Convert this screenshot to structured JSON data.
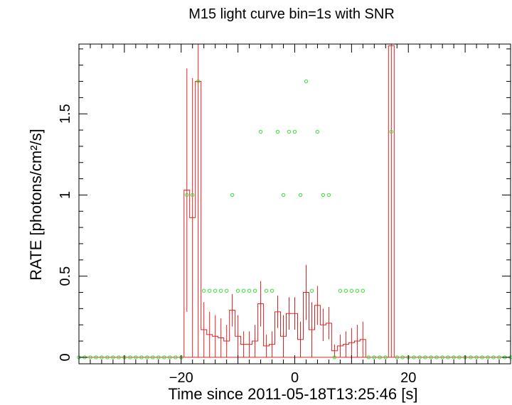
{
  "chart_data": {
    "type": "line",
    "title": "M15 light curve bin=1s with SNR",
    "xlabel": "Time since 2011-05-18T13:25:46 [s]",
    "ylabel": "RATE [photons/cm²/s]",
    "xlim": [
      -38,
      38
    ],
    "ylim": [
      -0.04,
      1.93
    ],
    "xticks": [
      -20,
      0,
      20
    ],
    "xtick_labels": [
      "−20",
      "0",
      "20"
    ],
    "yticks": [
      0,
      0.5,
      1,
      1.5
    ],
    "ytick_labels": [
      "0",
      "0.5",
      "1",
      "1.5"
    ],
    "grid": false,
    "colors": {
      "rate": "#e02020",
      "snr": "#33dd33",
      "axes": "#000000"
    },
    "series": [
      {
        "kind": "step-with-errorbars",
        "bin_width": 1,
        "points": [
          {
            "t": -19,
            "rate": 1.03,
            "err": 0.75
          },
          {
            "t": -18,
            "rate": 0.86,
            "err": 0.86
          },
          {
            "t": -17,
            "rate": 1.7,
            "err": 1.7
          },
          {
            "t": -16,
            "rate": 0.17,
            "err": 0.17
          },
          {
            "t": -15,
            "rate": 0.14,
            "err": 0.14
          },
          {
            "t": -14,
            "rate": 0.13,
            "err": 0.13
          },
          {
            "t": -13,
            "rate": 0.12,
            "err": 0.12
          },
          {
            "t": -12,
            "rate": 0.1,
            "err": 0.1
          },
          {
            "t": -11,
            "rate": 0.29,
            "err": 0.1
          },
          {
            "t": -10,
            "rate": 0.13,
            "err": 0.13
          },
          {
            "t": -9,
            "rate": 0.08,
            "err": 0.08
          },
          {
            "t": -8,
            "rate": 0.08,
            "err": 0.08
          },
          {
            "t": -7,
            "rate": 0.1,
            "err": 0.1
          },
          {
            "t": -6,
            "rate": 0.33,
            "err": 0.14
          },
          {
            "t": -5,
            "rate": 0.07,
            "err": 0.07
          },
          {
            "t": -4,
            "rate": 0.08,
            "err": 0.08
          },
          {
            "t": -3,
            "rate": 0.28,
            "err": 0.1
          },
          {
            "t": -2,
            "rate": 0.13,
            "err": 0.13
          },
          {
            "t": -1,
            "rate": 0.27,
            "err": 0.1
          },
          {
            "t": 0,
            "rate": 0.27,
            "err": 0.1
          },
          {
            "t": 1,
            "rate": 0.11,
            "err": 0.11
          },
          {
            "t": 2,
            "rate": 0.4,
            "err": 0.17
          },
          {
            "t": 3,
            "rate": 0.17,
            "err": 0.17
          },
          {
            "t": 4,
            "rate": 0.32,
            "err": 0.12
          },
          {
            "t": 5,
            "rate": 0.2,
            "err": 0.1
          },
          {
            "t": 6,
            "rate": 0.21,
            "err": 0.1
          },
          {
            "t": 7,
            "rate": 0.04,
            "err": 0.04
          },
          {
            "t": 8,
            "rate": 0.07,
            "err": 0.07
          },
          {
            "t": 9,
            "rate": 0.08,
            "err": 0.08
          },
          {
            "t": 10,
            "rate": 0.09,
            "err": 0.09
          },
          {
            "t": 11,
            "rate": 0.1,
            "err": 0.1
          },
          {
            "t": 12,
            "rate": 0.11,
            "err": 0.11
          },
          {
            "t": 17,
            "rate": 1.92,
            "err": 1.92
          }
        ]
      },
      {
        "kind": "scatter",
        "points": [
          {
            "t": -38,
            "snr": 0
          },
          {
            "t": -37,
            "snr": 0
          },
          {
            "t": -36,
            "snr": 0
          },
          {
            "t": -35,
            "snr": 0
          },
          {
            "t": -34,
            "snr": 0
          },
          {
            "t": -33,
            "snr": 0
          },
          {
            "t": -32,
            "snr": 0
          },
          {
            "t": -31,
            "snr": 0
          },
          {
            "t": -30,
            "snr": 0
          },
          {
            "t": -29,
            "snr": 0
          },
          {
            "t": -28,
            "snr": 0
          },
          {
            "t": -27,
            "snr": 0
          },
          {
            "t": -26,
            "snr": 0
          },
          {
            "t": -25,
            "snr": 0
          },
          {
            "t": -24,
            "snr": 0
          },
          {
            "t": -23,
            "snr": 0
          },
          {
            "t": -22,
            "snr": 0
          },
          {
            "t": -21,
            "snr": 0
          },
          {
            "t": -20,
            "snr": 0
          },
          {
            "t": -19,
            "snr": 1.0
          },
          {
            "t": -18,
            "snr": 1.0
          },
          {
            "t": -17,
            "snr": 1.7
          },
          {
            "t": -16,
            "snr": 0.41
          },
          {
            "t": -15,
            "snr": 0.41
          },
          {
            "t": -14,
            "snr": 0.41
          },
          {
            "t": -13,
            "snr": 0.41
          },
          {
            "t": -12,
            "snr": 0.41
          },
          {
            "t": -11,
            "snr": 1.0
          },
          {
            "t": -10,
            "snr": 0.41
          },
          {
            "t": -9,
            "snr": 0.41
          },
          {
            "t": -8,
            "snr": 0.41
          },
          {
            "t": -7,
            "snr": 0.41
          },
          {
            "t": -6,
            "snr": 1.39
          },
          {
            "t": -5,
            "snr": 0.41
          },
          {
            "t": -4,
            "snr": 0.41
          },
          {
            "t": -3,
            "snr": 1.39
          },
          {
            "t": -2,
            "snr": 1.0
          },
          {
            "t": -1,
            "snr": 1.39
          },
          {
            "t": 0,
            "snr": 1.39
          },
          {
            "t": 1,
            "snr": 1.0
          },
          {
            "t": 2,
            "snr": 1.7
          },
          {
            "t": 3,
            "snr": 0.41
          },
          {
            "t": 4,
            "snr": 1.39
          },
          {
            "t": 5,
            "snr": 1.0
          },
          {
            "t": 6,
            "snr": 1.0
          },
          {
            "t": 7,
            "snr": 0
          },
          {
            "t": 8,
            "snr": 0.41
          },
          {
            "t": 9,
            "snr": 0.41
          },
          {
            "t": 10,
            "snr": 0.41
          },
          {
            "t": 11,
            "snr": 0.41
          },
          {
            "t": 12,
            "snr": 0.41
          },
          {
            "t": 13,
            "snr": 0
          },
          {
            "t": 14,
            "snr": 0
          },
          {
            "t": 15,
            "snr": 0
          },
          {
            "t": 16,
            "snr": 0
          },
          {
            "t": 17,
            "snr": 1.39
          },
          {
            "t": 18,
            "snr": 0
          },
          {
            "t": 19,
            "snr": 0
          },
          {
            "t": 20,
            "snr": 0
          },
          {
            "t": 21,
            "snr": 0
          },
          {
            "t": 22,
            "snr": 0
          },
          {
            "t": 23,
            "snr": 0
          },
          {
            "t": 24,
            "snr": 0
          },
          {
            "t": 25,
            "snr": 0
          },
          {
            "t": 26,
            "snr": 0
          },
          {
            "t": 27,
            "snr": 0
          },
          {
            "t": 28,
            "snr": 0
          },
          {
            "t": 29,
            "snr": 0
          },
          {
            "t": 30,
            "snr": 0
          },
          {
            "t": 31,
            "snr": 0
          },
          {
            "t": 32,
            "snr": 0
          },
          {
            "t": 33,
            "snr": 0
          },
          {
            "t": 34,
            "snr": 0
          },
          {
            "t": 35,
            "snr": 0
          },
          {
            "t": 36,
            "snr": 0
          },
          {
            "t": 37,
            "snr": 0
          },
          {
            "t": 38,
            "snr": 0
          }
        ]
      }
    ]
  }
}
